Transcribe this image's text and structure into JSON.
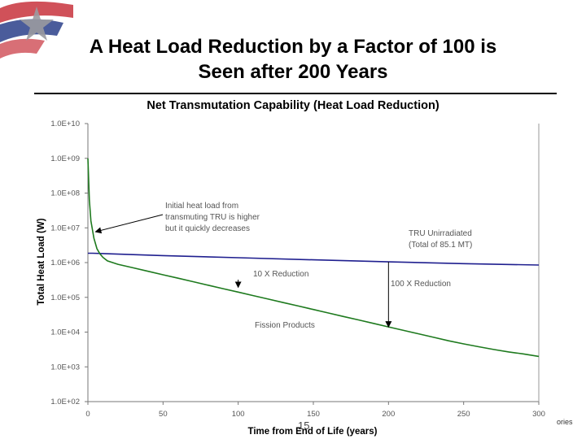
{
  "slide": {
    "title_line1": "A Heat Load Reduction by a Factor of 100 is",
    "title_line2": "Seen after 200 Years",
    "page_number": "15",
    "footer_right": "ories"
  },
  "colors": {
    "tru_line": "#1f1f8f",
    "fission_line": "#1e7a1e",
    "title_rule": "#000000",
    "flag_red": "#c8323c",
    "flag_blue": "#2a3f8a"
  },
  "chart_data": {
    "type": "line",
    "title": "Net Transmutation Capability (Heat Load Reduction)",
    "xlabel": "Time from End of Life (years)",
    "ylabel": "Total Heat Load (W)",
    "xlim": [
      0,
      300
    ],
    "x_ticks": [
      0,
      50,
      100,
      150,
      200,
      250,
      300
    ],
    "y_scale": "log",
    "y_tick_exponents": [
      2,
      3,
      4,
      5,
      6,
      7,
      8,
      9,
      10
    ],
    "y_tick_labels": [
      "1.0E+02",
      "1.0E+03",
      "1.0E+04",
      "1.0E+05",
      "1.0E+06",
      "1.0E+07",
      "1.0E+08",
      "1.0E+09",
      "1.0E+10"
    ],
    "grid": false,
    "series": [
      {
        "name": "TRU Unirradiated (Total of 85.1 MT)",
        "x": [
          0,
          3,
          50,
          100,
          150,
          200,
          250,
          300
        ],
        "y_exponent": [
          6.27,
          6.27,
          6.2,
          6.14,
          6.08,
          6.02,
          5.97,
          5.93
        ]
      },
      {
        "name": "Fission Products",
        "x": [
          0,
          1,
          2,
          4,
          6,
          8,
          10,
          13,
          20,
          30,
          40,
          50,
          60,
          70,
          80,
          90,
          100,
          110,
          120,
          130,
          140,
          150,
          160,
          170,
          180,
          190,
          200,
          210,
          220,
          230,
          240,
          250,
          260,
          270,
          280,
          290,
          300
        ],
        "y_exponent": [
          9.0,
          7.8,
          7.2,
          6.7,
          6.4,
          6.25,
          6.15,
          6.05,
          5.95,
          5.85,
          5.75,
          5.65,
          5.55,
          5.45,
          5.35,
          5.25,
          5.15,
          5.05,
          4.95,
          4.85,
          4.75,
          4.65,
          4.55,
          4.45,
          4.35,
          4.25,
          4.15,
          4.05,
          3.95,
          3.85,
          3.75,
          3.66,
          3.58,
          3.5,
          3.43,
          3.37,
          3.3
        ]
      }
    ],
    "annotations": [
      {
        "id": "initial",
        "lines": [
          "Initial heat load from",
          "transmuting TRU is higher",
          "but it quickly decreases"
        ]
      },
      {
        "id": "tru",
        "lines": [
          "TRU Unirradiated",
          "(Total of 85.1 MT)"
        ]
      },
      {
        "id": "ten_x",
        "lines": [
          "10 X Reduction"
        ]
      },
      {
        "id": "hundred_x",
        "lines": [
          "100 X Reduction"
        ]
      },
      {
        "id": "fission",
        "lines": [
          "Fission Products"
        ]
      }
    ]
  }
}
